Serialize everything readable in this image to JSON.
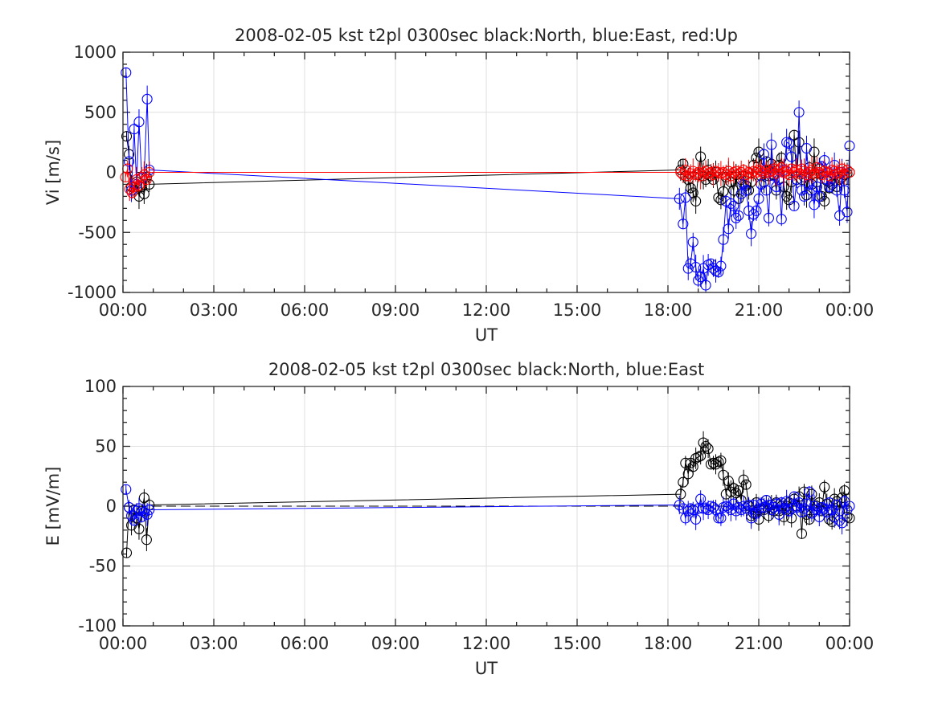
{
  "chart_data": [
    {
      "type": "scatter",
      "title": "2008-02-05 kst t2pl 0300sec black:North, blue:East, red:Up",
      "xlabel": "UT",
      "ylabel": "Vi [m/s]",
      "x_unit": "hours UT",
      "xlim": [
        0,
        24
      ],
      "ylim": [
        -1000,
        1000
      ],
      "xtick_labels": [
        "00:00",
        "03:00",
        "06:00",
        "09:00",
        "12:00",
        "15:00",
        "18:00",
        "21:00",
        "00:00"
      ],
      "ytick_labels": [
        "1000",
        "500",
        "0",
        "-500",
        "-1000"
      ],
      "grid": true,
      "series": [
        {
          "name": "North",
          "color": "#000000",
          "errorbars": true,
          "x": [
            0.12,
            0.2,
            0.28,
            0.37,
            0.45,
            0.53,
            0.62,
            0.7,
            0.78,
            0.87,
            18.42,
            18.5,
            18.58,
            18.67,
            18.75,
            18.83,
            18.92,
            19.0,
            19.08,
            19.17,
            19.25,
            19.33,
            19.42,
            19.5,
            19.58,
            19.67,
            19.75,
            19.83,
            19.92,
            20.0,
            20.08,
            20.17,
            20.25,
            20.33,
            20.42,
            20.5,
            20.58,
            20.67,
            20.75,
            20.83,
            20.92,
            21.0,
            21.08,
            21.17,
            21.25,
            21.33,
            21.42,
            21.5,
            21.58,
            21.67,
            21.75,
            21.83,
            21.92,
            22.0,
            22.08,
            22.17,
            22.25,
            22.33,
            22.42,
            22.5,
            22.58,
            22.67,
            22.75,
            22.83,
            22.92,
            23.0,
            23.08,
            23.17,
            23.25,
            23.33,
            23.42,
            23.5,
            23.58,
            23.67,
            23.75,
            23.83,
            23.92,
            24.0
          ],
          "y": [
            300,
            150,
            -120,
            -150,
            -80,
            -200,
            -120,
            -180,
            -40,
            -100,
            20,
            70,
            -30,
            -60,
            -130,
            -170,
            -240,
            -20,
            130,
            -30,
            -60,
            20,
            -30,
            -60,
            0,
            -210,
            -230,
            -160,
            -40,
            10,
            -80,
            -150,
            -20,
            -220,
            -60,
            -30,
            -110,
            -150,
            -80,
            60,
            120,
            170,
            -30,
            -80,
            90,
            -30,
            70,
            -20,
            -150,
            60,
            120,
            -120,
            -200,
            -230,
            -80,
            310,
            -60,
            250,
            -60,
            -40,
            -190,
            40,
            -100,
            170,
            -80,
            30,
            -200,
            -240,
            -70,
            -130,
            -100,
            -20,
            -120,
            -60,
            -40,
            -20,
            -10,
            0
          ]
        },
        {
          "name": "East",
          "color": "#0000ff",
          "errorbars": true,
          "x": [
            0.1,
            0.2,
            0.28,
            0.37,
            0.45,
            0.53,
            0.62,
            0.7,
            0.8,
            0.87,
            18.38,
            18.5,
            18.58,
            18.67,
            18.75,
            18.83,
            18.92,
            19.0,
            19.08,
            19.17,
            19.25,
            19.33,
            19.42,
            19.5,
            19.58,
            19.67,
            19.75,
            19.83,
            19.92,
            20.0,
            20.08,
            20.17,
            20.25,
            20.33,
            20.42,
            20.5,
            20.58,
            20.67,
            20.75,
            20.83,
            20.92,
            21.0,
            21.08,
            21.17,
            21.25,
            21.33,
            21.42,
            21.5,
            21.58,
            21.67,
            21.75,
            21.83,
            21.92,
            22.0,
            22.08,
            22.17,
            22.25,
            22.33,
            22.42,
            22.5,
            22.58,
            22.67,
            22.75,
            22.83,
            22.92,
            23.0,
            23.08,
            23.17,
            23.25,
            23.33,
            23.42,
            23.5,
            23.58,
            23.67,
            23.75,
            23.83,
            23.92,
            24.0
          ],
          "y": [
            830,
            90,
            -150,
            360,
            -100,
            420,
            -50,
            -20,
            610,
            20,
            -220,
            -430,
            -210,
            -800,
            -760,
            -580,
            -790,
            -900,
            -870,
            -800,
            -940,
            -770,
            -760,
            -800,
            -820,
            -830,
            -780,
            -560,
            -240,
            -470,
            -260,
            -280,
            -380,
            -360,
            -180,
            -100,
            -150,
            -320,
            -510,
            -350,
            -320,
            -220,
            -100,
            150,
            -150,
            -380,
            230,
            -30,
            -120,
            -60,
            -390,
            20,
            250,
            240,
            130,
            -280,
            -60,
            500,
            -150,
            -200,
            200,
            -100,
            -150,
            -270,
            -120,
            -200,
            50,
            100,
            -60,
            -120,
            -50,
            60,
            -150,
            -360,
            0,
            -150,
            -330,
            220
          ]
        },
        {
          "name": "Up",
          "color": "#ff0000",
          "errorbars": true,
          "x": [
            0.08,
            0.15,
            0.22,
            0.3,
            0.37,
            0.45,
            0.53,
            0.62,
            0.7,
            0.78,
            0.87,
            18.42,
            18.5,
            18.58,
            18.67,
            18.75,
            18.83,
            18.92,
            19.0,
            19.08,
            19.17,
            19.25,
            19.33,
            19.42,
            19.5,
            19.58,
            19.67,
            19.75,
            19.83,
            19.92,
            20.0,
            20.08,
            20.17,
            20.25,
            20.33,
            20.42,
            20.5,
            20.58,
            20.67,
            20.75,
            20.83,
            20.92,
            21.0,
            21.08,
            21.17,
            21.25,
            21.33,
            21.42,
            21.5,
            21.58,
            21.67,
            21.75,
            21.83,
            21.92,
            22.0,
            22.08,
            22.17,
            22.25,
            22.33,
            22.42,
            22.5,
            22.58,
            22.67,
            22.75,
            22.83,
            22.92,
            23.0,
            23.08,
            23.17,
            23.25,
            23.33,
            23.42,
            23.5,
            23.58,
            23.67,
            23.75,
            23.83,
            23.92,
            24.0
          ],
          "y": [
            -40,
            30,
            -140,
            -170,
            -120,
            -60,
            -110,
            -40,
            -20,
            -60,
            0,
            0,
            -20,
            20,
            -30,
            -10,
            10,
            -20,
            0,
            -30,
            0,
            10,
            -10,
            0,
            -20,
            10,
            0,
            -10,
            0,
            -20,
            10,
            -30,
            0,
            10,
            -10,
            0,
            20,
            -20,
            0,
            -10,
            10,
            0,
            20,
            10,
            -10,
            20,
            0,
            10,
            30,
            -10,
            20,
            40,
            0,
            10,
            -20,
            30,
            0,
            20,
            -10,
            30,
            10,
            -20,
            0,
            20,
            -10,
            40,
            0,
            -20,
            10,
            0,
            -30,
            20,
            10,
            -10,
            0,
            30,
            -10,
            20,
            0
          ]
        }
      ]
    },
    {
      "type": "scatter",
      "title": "2008-02-05 kst t2pl 0300sec black:North, blue:East",
      "xlabel": "UT",
      "ylabel": "E [mV/m]",
      "x_unit": "hours UT",
      "xlim": [
        0,
        24
      ],
      "ylim": [
        -100,
        100
      ],
      "xtick_labels": [
        "00:00",
        "03:00",
        "06:00",
        "09:00",
        "12:00",
        "15:00",
        "18:00",
        "21:00",
        "00:00"
      ],
      "ytick_labels": [
        "100",
        "50",
        "0",
        "-50",
        "-100"
      ],
      "grid": true,
      "series": [
        {
          "name": "North",
          "color": "#000000",
          "errorbars": true,
          "x": [
            0.12,
            0.2,
            0.28,
            0.37,
            0.45,
            0.53,
            0.62,
            0.7,
            0.78,
            0.87,
            18.42,
            18.5,
            18.58,
            18.67,
            18.75,
            18.83,
            18.92,
            19.0,
            19.08,
            19.17,
            19.25,
            19.33,
            19.42,
            19.5,
            19.58,
            19.67,
            19.75,
            19.83,
            19.92,
            20.0,
            20.08,
            20.17,
            20.25,
            20.33,
            20.42,
            20.5,
            20.58,
            20.67,
            20.75,
            20.83,
            20.92,
            21.0,
            21.08,
            21.17,
            21.25,
            21.33,
            21.42,
            21.5,
            21.58,
            21.67,
            21.75,
            21.83,
            21.92,
            22.0,
            22.08,
            22.17,
            22.25,
            22.33,
            22.42,
            22.5,
            22.58,
            22.67,
            22.75,
            22.83,
            22.92,
            23.0,
            23.08,
            23.17,
            23.25,
            23.33,
            23.42,
            23.5,
            23.58,
            23.67,
            23.75,
            23.83,
            23.92,
            24.0
          ],
          "y": [
            -39,
            -1,
            -16,
            -3,
            -10,
            -19,
            -4,
            7,
            -28,
            1,
            10,
            20,
            36,
            27,
            36,
            33,
            40,
            41,
            42,
            53,
            50,
            48,
            35,
            36,
            35,
            37,
            38,
            26,
            10,
            21,
            12,
            15,
            11,
            13,
            5,
            22,
            18,
            0,
            -8,
            -6,
            3,
            -11,
            -2,
            -3,
            5,
            -8,
            1,
            -4,
            3,
            -4,
            0,
            -9,
            0,
            3,
            -10,
            6,
            0,
            8,
            -23,
            12,
            -7,
            -11,
            10,
            -3,
            0,
            3,
            -4,
            16,
            2,
            -11,
            -13,
            6,
            4,
            -4,
            7,
            13,
            -9,
            -10
          ]
        },
        {
          "name": "East",
          "color": "#0000ff",
          "errorbars": true,
          "x": [
            0.1,
            0.2,
            0.28,
            0.37,
            0.45,
            0.53,
            0.62,
            0.7,
            0.8,
            0.87,
            18.38,
            18.5,
            18.58,
            18.67,
            18.75,
            18.83,
            18.92,
            19.0,
            19.08,
            19.17,
            19.25,
            19.33,
            19.42,
            19.5,
            19.58,
            19.67,
            19.75,
            19.83,
            19.92,
            20.0,
            20.08,
            20.17,
            20.25,
            20.33,
            20.42,
            20.5,
            20.58,
            20.67,
            20.75,
            20.83,
            20.92,
            21.0,
            21.08,
            21.17,
            21.25,
            21.33,
            21.42,
            21.5,
            21.58,
            21.67,
            21.75,
            21.83,
            21.92,
            22.0,
            22.08,
            22.17,
            22.25,
            22.33,
            22.42,
            22.5,
            22.58,
            22.67,
            22.75,
            22.83,
            22.92,
            23.0,
            23.08,
            23.17,
            23.25,
            23.33,
            23.42,
            23.5,
            23.58,
            23.67,
            23.75,
            23.83,
            23.92,
            24.0
          ],
          "y": [
            14,
            -1,
            -8,
            -12,
            -4,
            -2,
            -9,
            -5,
            -7,
            -3,
            1,
            -2,
            -10,
            -4,
            -2,
            -3,
            -11,
            -2,
            6,
            -2,
            -2,
            -3,
            0,
            -1,
            -3,
            -10,
            -10,
            -1,
            0,
            -1,
            -3,
            2,
            -4,
            -1,
            -3,
            0,
            -2,
            1,
            -10,
            1,
            -6,
            -2,
            2,
            -1,
            5,
            1,
            -3,
            -1,
            2,
            -7,
            3,
            -2,
            4,
            -4,
            -2,
            8,
            -1,
            3,
            -5,
            -2,
            2,
            12,
            -6,
            0,
            -3,
            -9,
            -1,
            -2,
            -5,
            3,
            -3,
            -9,
            1,
            -12,
            -14,
            4,
            -3,
            0
          ]
        }
      ]
    }
  ]
}
